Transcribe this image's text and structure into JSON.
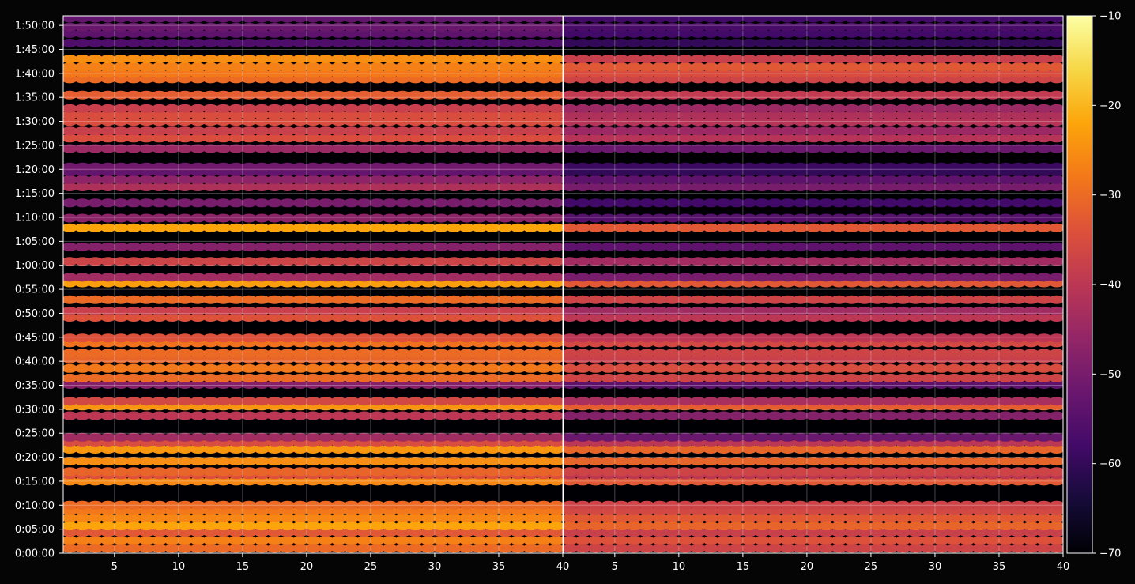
{
  "chart_data": {
    "type": "heatmap",
    "title": "",
    "xlabel": "",
    "ylabel": "",
    "grid": true,
    "colormap": "inferno",
    "colorbar": {
      "range": [
        -70,
        -10
      ],
      "ticks": [
        -10,
        -20,
        -30,
        -40,
        -50,
        -60,
        -70
      ],
      "tick_labels": [
        "−10",
        "−20",
        "−30",
        "−40",
        "−50",
        "−60",
        "−70"
      ]
    },
    "y_axis": {
      "range_seconds": [
        0,
        6720
      ],
      "ticks_seconds": [
        0,
        300,
        600,
        900,
        1200,
        1500,
        1800,
        2100,
        2400,
        2700,
        3000,
        3300,
        3600,
        3900,
        4200,
        4500,
        4800,
        5100,
        5400,
        5700,
        6000,
        6300,
        6600
      ],
      "tick_labels": [
        "0:00:00",
        "0:05:00",
        "0:10:00",
        "0:15:00",
        "0:20:00",
        "0:25:00",
        "0:30:00",
        "0:35:00",
        "0:40:00",
        "0:45:00",
        "0:50:00",
        "0:55:00",
        "1:00:00",
        "1:05:00",
        "1:10:00",
        "1:15:00",
        "1:20:00",
        "1:25:00",
        "1:30:00",
        "1:35:00",
        "1:40:00",
        "1:45:00",
        "1:50:00"
      ]
    },
    "panels": [
      {
        "name": "left",
        "x_range": [
          1,
          40
        ],
        "x_ticks": [
          5,
          10,
          15,
          20,
          25,
          30,
          35,
          40
        ],
        "x_tick_labels": [
          "5",
          "10",
          "15",
          "20",
          "25",
          "30",
          "35",
          "40"
        ],
        "bands": [
          {
            "t": 60,
            "v": -30
          },
          {
            "t": 160,
            "v": -27
          },
          {
            "t": 260,
            "v": -33
          },
          {
            "t": 340,
            "v": -22
          },
          {
            "t": 440,
            "v": -26
          },
          {
            "t": 530,
            "v": -28
          },
          {
            "t": 600,
            "v": -30
          },
          {
            "t": 900,
            "v": -26
          },
          {
            "t": 980,
            "v": -34
          },
          {
            "t": 1020,
            "v": -31
          },
          {
            "t": 1150,
            "v": -25
          },
          {
            "t": 1300,
            "v": -24
          },
          {
            "t": 1380,
            "v": -35
          },
          {
            "t": 1450,
            "v": -44
          },
          {
            "t": 1720,
            "v": -40
          },
          {
            "t": 1840,
            "v": -24
          },
          {
            "t": 1900,
            "v": -36
          },
          {
            "t": 2110,
            "v": -48
          },
          {
            "t": 2190,
            "v": -30
          },
          {
            "t": 2310,
            "v": -28
          },
          {
            "t": 2430,
            "v": -31
          },
          {
            "t": 2500,
            "v": -30
          },
          {
            "t": 2630,
            "v": -29
          },
          {
            "t": 2690,
            "v": -34
          },
          {
            "t": 2950,
            "v": -34
          },
          {
            "t": 3030,
            "v": -38
          },
          {
            "t": 3170,
            "v": -30
          },
          {
            "t": 3380,
            "v": -23
          },
          {
            "t": 3450,
            "v": -44
          },
          {
            "t": 3650,
            "v": -37
          },
          {
            "t": 3830,
            "v": -48
          },
          {
            "t": 4070,
            "v": -22
          },
          {
            "t": 4190,
            "v": -47
          },
          {
            "t": 4380,
            "v": -50
          },
          {
            "t": 4580,
            "v": -42
          },
          {
            "t": 4670,
            "v": -47
          },
          {
            "t": 4770,
            "v": -53
          },
          {
            "t": 4830,
            "v": -51
          },
          {
            "t": 5060,
            "v": -45
          },
          {
            "t": 5190,
            "v": -35
          },
          {
            "t": 5280,
            "v": -38
          },
          {
            "t": 5400,
            "v": -35
          },
          {
            "t": 5480,
            "v": -35
          },
          {
            "t": 5560,
            "v": -38
          },
          {
            "t": 5730,
            "v": -32
          },
          {
            "t": 5930,
            "v": -30
          },
          {
            "t": 6000,
            "v": -28
          },
          {
            "t": 6080,
            "v": -27
          },
          {
            "t": 6180,
            "v": -25
          },
          {
            "t": 6380,
            "v": -56
          },
          {
            "t": 6500,
            "v": -54
          },
          {
            "t": 6580,
            "v": -52
          },
          {
            "t": 6690,
            "v": -53
          }
        ]
      },
      {
        "name": "right",
        "x_range": [
          1,
          40
        ],
        "x_ticks": [
          5,
          10,
          15,
          20,
          25,
          30,
          35,
          40
        ],
        "x_tick_labels": [
          "5",
          "10",
          "15",
          "20",
          "25",
          "30",
          "35",
          "40"
        ],
        "bands": [
          {
            "t": 60,
            "v": -37
          },
          {
            "t": 160,
            "v": -34
          },
          {
            "t": 260,
            "v": -38
          },
          {
            "t": 340,
            "v": -31
          },
          {
            "t": 440,
            "v": -33
          },
          {
            "t": 530,
            "v": -36
          },
          {
            "t": 600,
            "v": -37
          },
          {
            "t": 900,
            "v": -33
          },
          {
            "t": 980,
            "v": -40
          },
          {
            "t": 1020,
            "v": -37
          },
          {
            "t": 1150,
            "v": -31
          },
          {
            "t": 1300,
            "v": -31
          },
          {
            "t": 1380,
            "v": -40
          },
          {
            "t": 1450,
            "v": -52
          },
          {
            "t": 1720,
            "v": -48
          },
          {
            "t": 1840,
            "v": -32
          },
          {
            "t": 1900,
            "v": -43
          },
          {
            "t": 2110,
            "v": -54
          },
          {
            "t": 2190,
            "v": -37
          },
          {
            "t": 2310,
            "v": -35
          },
          {
            "t": 2430,
            "v": -38
          },
          {
            "t": 2500,
            "v": -37
          },
          {
            "t": 2630,
            "v": -36
          },
          {
            "t": 2690,
            "v": -40
          },
          {
            "t": 2950,
            "v": -40
          },
          {
            "t": 3030,
            "v": -44
          },
          {
            "t": 3170,
            "v": -37
          },
          {
            "t": 3380,
            "v": -33
          },
          {
            "t": 3450,
            "v": -50
          },
          {
            "t": 3650,
            "v": -44
          },
          {
            "t": 3830,
            "v": -54
          },
          {
            "t": 4070,
            "v": -33
          },
          {
            "t": 4190,
            "v": -55
          },
          {
            "t": 4380,
            "v": -58
          },
          {
            "t": 4580,
            "v": -50
          },
          {
            "t": 4670,
            "v": -54
          },
          {
            "t": 4770,
            "v": -60
          },
          {
            "t": 4830,
            "v": -59
          },
          {
            "t": 5060,
            "v": -52
          },
          {
            "t": 5190,
            "v": -41
          },
          {
            "t": 5280,
            "v": -45
          },
          {
            "t": 5400,
            "v": -41
          },
          {
            "t": 5480,
            "v": -42
          },
          {
            "t": 5560,
            "v": -45
          },
          {
            "t": 5730,
            "v": -39
          },
          {
            "t": 5930,
            "v": -37
          },
          {
            "t": 6000,
            "v": -35
          },
          {
            "t": 6080,
            "v": -33
          },
          {
            "t": 6180,
            "v": -38
          },
          {
            "t": 6380,
            "v": -60
          },
          {
            "t": 6500,
            "v": -58
          },
          {
            "t": 6580,
            "v": -57
          },
          {
            "t": 6690,
            "v": -58
          }
        ]
      }
    ]
  }
}
